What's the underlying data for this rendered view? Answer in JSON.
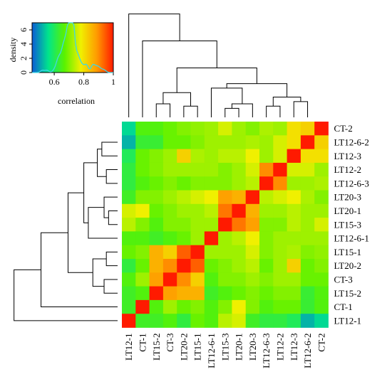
{
  "chart_data": {
    "type": "heatmap",
    "title": "",
    "labels": [
      "LT12-1",
      "CT-1",
      "LT15-2",
      "CT-3",
      "LT20-2",
      "LT15-1",
      "LT12-6-1",
      "LT15-3",
      "LT20-1",
      "LT20-3",
      "LT12-6-3",
      "LT12-2",
      "LT12-3",
      "LT12-6-2",
      "CT-2"
    ],
    "columns": [
      "LT12-1",
      "CT-1",
      "LT15-2",
      "CT-3",
      "LT20-2",
      "LT15-1",
      "LT12-6-1",
      "LT15-3",
      "LT20-1",
      "LT20-3",
      "LT12-6-3",
      "LT12-2",
      "LT12-3",
      "LT12-6-2",
      "CT-2"
    ],
    "rows_top_to_bottom": [
      "CT-2",
      "LT12-6-2",
      "LT12-3",
      "LT12-2",
      "LT12-6-3",
      "LT20-3",
      "LT20-1",
      "LT15-3",
      "LT12-6-1",
      "LT15-1",
      "LT20-2",
      "CT-3",
      "LT15-2",
      "CT-1",
      "LT12-1"
    ],
    "values_top_to_bottom": [
      [
        0.55,
        0.66,
        0.66,
        0.68,
        0.7,
        0.71,
        0.72,
        0.76,
        0.72,
        0.7,
        0.73,
        0.72,
        0.8,
        0.82,
        1.0
      ],
      [
        0.52,
        0.63,
        0.63,
        0.68,
        0.68,
        0.7,
        0.72,
        0.72,
        0.72,
        0.73,
        0.72,
        0.76,
        0.8,
        1.0,
        0.82
      ],
      [
        0.6,
        0.68,
        0.7,
        0.72,
        0.82,
        0.73,
        0.72,
        0.74,
        0.74,
        0.78,
        0.72,
        0.76,
        1.0,
        0.8,
        0.8
      ],
      [
        0.62,
        0.68,
        0.7,
        0.72,
        0.72,
        0.72,
        0.72,
        0.7,
        0.72,
        0.76,
        0.9,
        1.0,
        0.76,
        0.76,
        0.72
      ],
      [
        0.62,
        0.66,
        0.68,
        0.7,
        0.68,
        0.7,
        0.7,
        0.7,
        0.72,
        0.74,
        1.0,
        0.9,
        0.72,
        0.72,
        0.73
      ],
      [
        0.64,
        0.7,
        0.7,
        0.72,
        0.74,
        0.76,
        0.78,
        0.88,
        0.86,
        1.0,
        0.74,
        0.76,
        0.78,
        0.73,
        0.7
      ],
      [
        0.76,
        0.78,
        0.68,
        0.7,
        0.72,
        0.72,
        0.74,
        0.92,
        1.0,
        0.86,
        0.72,
        0.72,
        0.74,
        0.72,
        0.72
      ],
      [
        0.74,
        0.7,
        0.66,
        0.7,
        0.7,
        0.72,
        0.72,
        1.0,
        0.92,
        0.88,
        0.7,
        0.7,
        0.74,
        0.72,
        0.76
      ],
      [
        0.66,
        0.66,
        0.64,
        0.66,
        0.68,
        0.72,
        1.0,
        0.72,
        0.74,
        0.78,
        0.7,
        0.72,
        0.72,
        0.72,
        0.72
      ],
      [
        0.68,
        0.7,
        0.86,
        0.82,
        0.94,
        1.0,
        0.72,
        0.72,
        0.72,
        0.76,
        0.7,
        0.72,
        0.73,
        0.7,
        0.71
      ],
      [
        0.62,
        0.68,
        0.86,
        0.9,
        1.0,
        0.94,
        0.68,
        0.7,
        0.72,
        0.74,
        0.68,
        0.72,
        0.82,
        0.68,
        0.7
      ],
      [
        0.66,
        0.72,
        0.88,
        1.0,
        0.9,
        0.82,
        0.66,
        0.7,
        0.7,
        0.72,
        0.7,
        0.72,
        0.72,
        0.68,
        0.68
      ],
      [
        0.64,
        0.66,
        1.0,
        0.88,
        0.86,
        0.86,
        0.64,
        0.66,
        0.68,
        0.7,
        0.68,
        0.7,
        0.7,
        0.63,
        0.66
      ],
      [
        0.64,
        1.0,
        0.66,
        0.72,
        0.68,
        0.7,
        0.66,
        0.7,
        0.78,
        0.7,
        0.66,
        0.68,
        0.68,
        0.63,
        0.66
      ],
      [
        1.0,
        0.64,
        0.64,
        0.66,
        0.62,
        0.68,
        0.66,
        0.74,
        0.76,
        0.64,
        0.62,
        0.62,
        0.6,
        0.52,
        0.55
      ]
    ],
    "color_range": [
      0.45,
      1.0
    ],
    "colormap": [
      "#0b5cd6",
      "#00e58c",
      "#5af200",
      "#f0f000",
      "#ff9900",
      "#ff1a00"
    ],
    "dendrogram": {
      "leaf_order": [
        "LT12-1",
        "CT-1",
        "LT15-2",
        "CT-3",
        "LT20-2",
        "LT15-1",
        "LT12-6-1",
        "LT15-3",
        "LT20-1",
        "LT20-3",
        "LT12-6-3",
        "LT12-2",
        "LT12-3",
        "LT12-6-2",
        "CT-2"
      ],
      "merges": [
        [
          2,
          3,
          0.12
        ],
        [
          4,
          5,
          0.1
        ],
        [
          15,
          16,
          0.22
        ],
        [
          7,
          8,
          0.08
        ],
        [
          18,
          9,
          0.12
        ],
        [
          10,
          11,
          0.1
        ],
        [
          12,
          13,
          0.14
        ],
        [
          20,
          21,
          0.18
        ],
        [
          6,
          19,
          0.26
        ],
        [
          23,
          22,
          0.3
        ],
        [
          17,
          24,
          0.44
        ],
        [
          1,
          25,
          0.68
        ],
        [
          0,
          26,
          0.92
        ],
        [
          14,
          null,
          0
        ]
      ]
    },
    "color_key": {
      "xlabel": "correlation",
      "ylabel": "density",
      "x_ticks": [
        "0.6",
        "0.8",
        "1"
      ],
      "x_tick_values": [
        0.6,
        0.8,
        1.0
      ],
      "y_ticks": [
        "0",
        "2",
        "4",
        "6"
      ],
      "y_tick_values": [
        0,
        2,
        4,
        6
      ],
      "x_range": [
        0.45,
        1.0
      ],
      "y_range": [
        0,
        7
      ]
    }
  }
}
